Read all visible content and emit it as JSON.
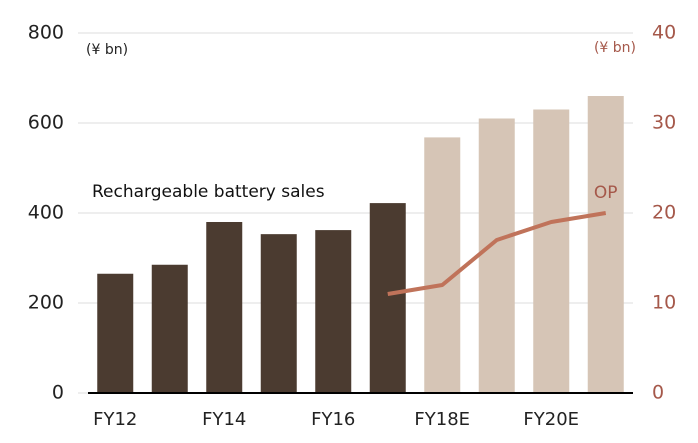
{
  "chart_data": {
    "type": "bar",
    "categories": [
      "FY12",
      null,
      "FY14",
      null,
      "FY16",
      null,
      "FY18E",
      null,
      "FY20E",
      null
    ],
    "series": [
      {
        "name": "Rechargeable battery sales",
        "type": "bar",
        "colors": [
          "#4b3b30",
          "#4b3b30",
          "#4b3b30",
          "#4b3b30",
          "#4b3b30",
          "#4b3b30",
          "#d6c5b6",
          "#d6c5b6",
          "#d6c5b6",
          "#d6c5b6"
        ],
        "values": [
          265,
          285,
          380,
          353,
          362,
          422,
          568,
          610,
          630,
          660
        ]
      },
      {
        "name": "OP",
        "type": "line",
        "axis": "y2",
        "color": "#c0735a",
        "values": [
          null,
          null,
          null,
          null,
          null,
          11,
          12,
          17,
          19,
          20
        ]
      }
    ],
    "y_unit": "(¥ bn)",
    "y2_unit": "(¥ bn)",
    "ylim": [
      0,
      800
    ],
    "yticks": [
      0,
      200,
      400,
      600,
      800
    ],
    "y2lim": [
      0,
      40
    ],
    "y2ticks": [
      0,
      10,
      20,
      30,
      40
    ],
    "y2_color": "#a5584a",
    "grid": true
  }
}
